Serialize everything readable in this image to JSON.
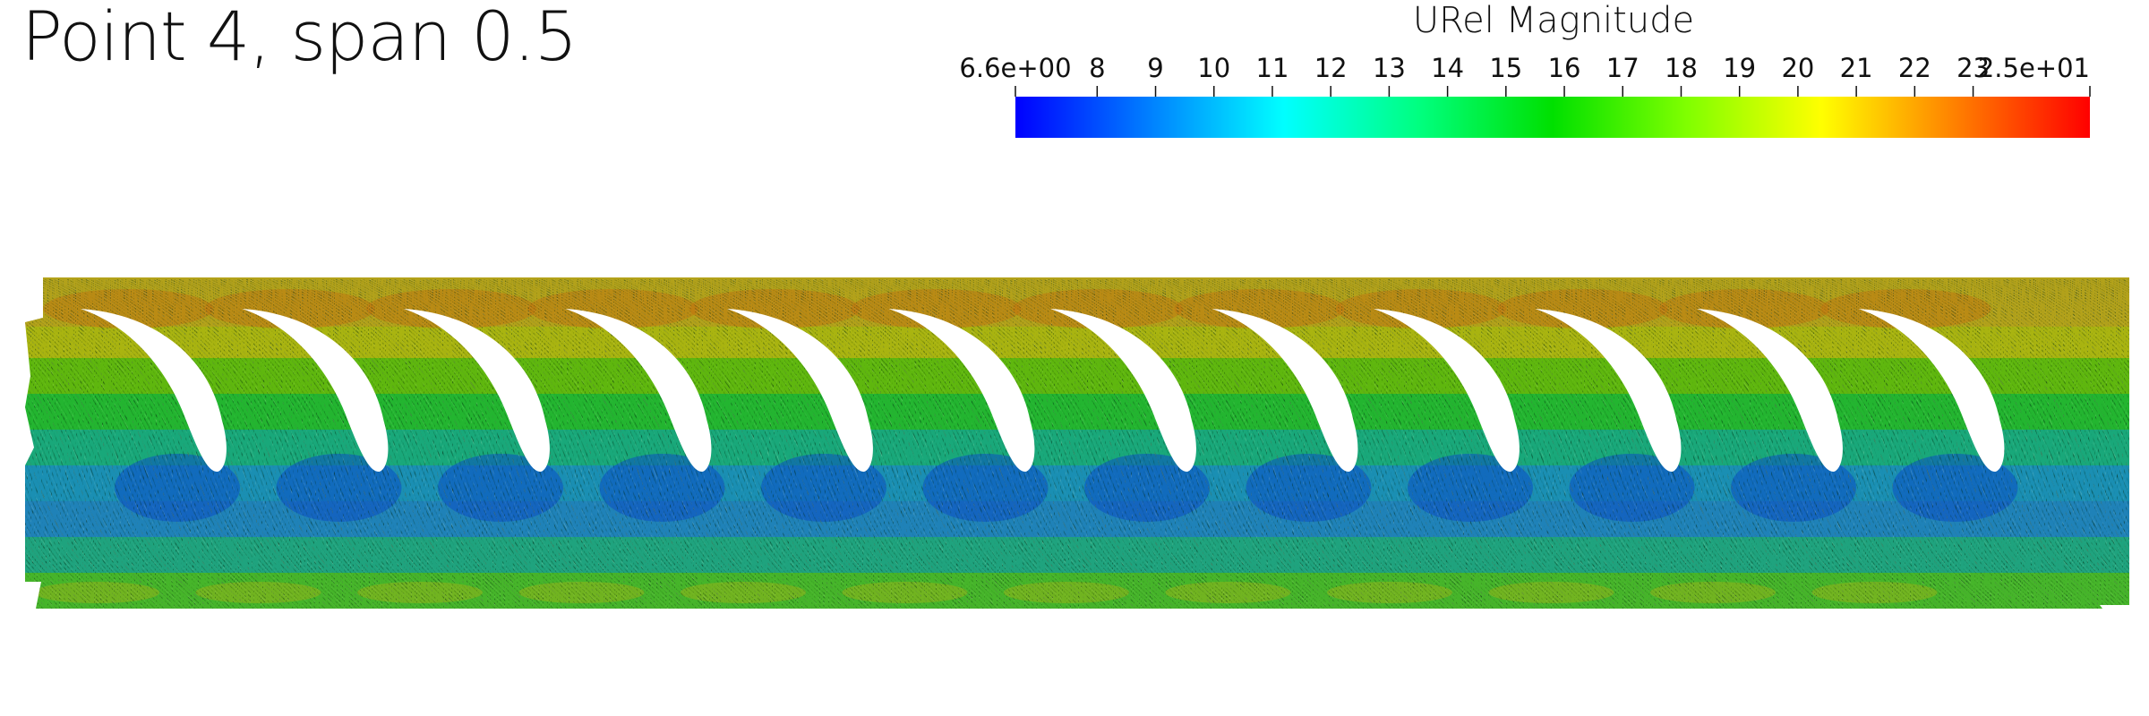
{
  "title": "Point 4, span 0.5",
  "colorbar": {
    "title": "URel Magnitude",
    "min_label": "6.6e+00",
    "max_label": "2.5e+01",
    "min": 6.6,
    "max": 25,
    "ticks": [
      "8",
      "9",
      "10",
      "11",
      "12",
      "13",
      "14",
      "15",
      "16",
      "17",
      "18",
      "19",
      "20",
      "21",
      "22",
      "23"
    ],
    "colormap": [
      "#0000ff",
      "#0080ff",
      "#00ffff",
      "#00ff80",
      "#00e000",
      "#80ff00",
      "#ffff00",
      "#ff8000",
      "#ff0000"
    ]
  },
  "field": {
    "blade_count": 12
  }
}
